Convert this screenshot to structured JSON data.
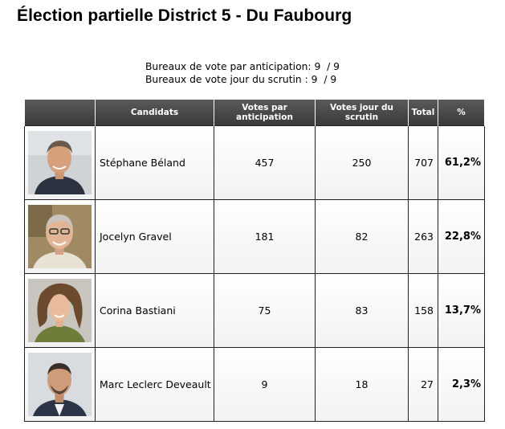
{
  "title": "Élection partielle District 5 - Du Faubourg",
  "bureaux": {
    "anticipation": "Bureaux de vote par anticipation: 9  / 9",
    "scrutin": "Bureaux de vote jour du scrutin : 9  / 9"
  },
  "table": {
    "headers": {
      "photo": "",
      "candidats": "Candidats",
      "anticipation": "Votes par anticipation",
      "scrutin": "Votes jour du scrutin",
      "total": "Total",
      "pct": "%"
    },
    "rows": [
      {
        "name": "Stéphane Béland",
        "anticipation": "457",
        "scrutin": "250",
        "total": "707",
        "pct": "61,2%",
        "photo": "candidate-photo",
        "photo_bg": "#cfd3d6",
        "photo_shirt": "#2b3340"
      },
      {
        "name": "Jocelyn Gravel",
        "anticipation": "181",
        "scrutin": "82",
        "total": "263",
        "pct": "22,8%",
        "photo": "candidate-photo",
        "photo_bg": "#a08a64",
        "photo_shirt": "#e7e2d4"
      },
      {
        "name": "Corina Bastiani",
        "anticipation": "75",
        "scrutin": "83",
        "total": "158",
        "pct": "13,7%",
        "photo": "candidate-photo",
        "photo_bg": "#c8c4be",
        "photo_shirt": "#6e7d3a"
      },
      {
        "name": "Marc Leclerc Deveault",
        "anticipation": "9",
        "scrutin": "18",
        "total": "27",
        "pct": "2,3%",
        "photo": "candidate-photo",
        "photo_bg": "#d9dcdf",
        "photo_shirt": "#2c3548"
      }
    ]
  }
}
